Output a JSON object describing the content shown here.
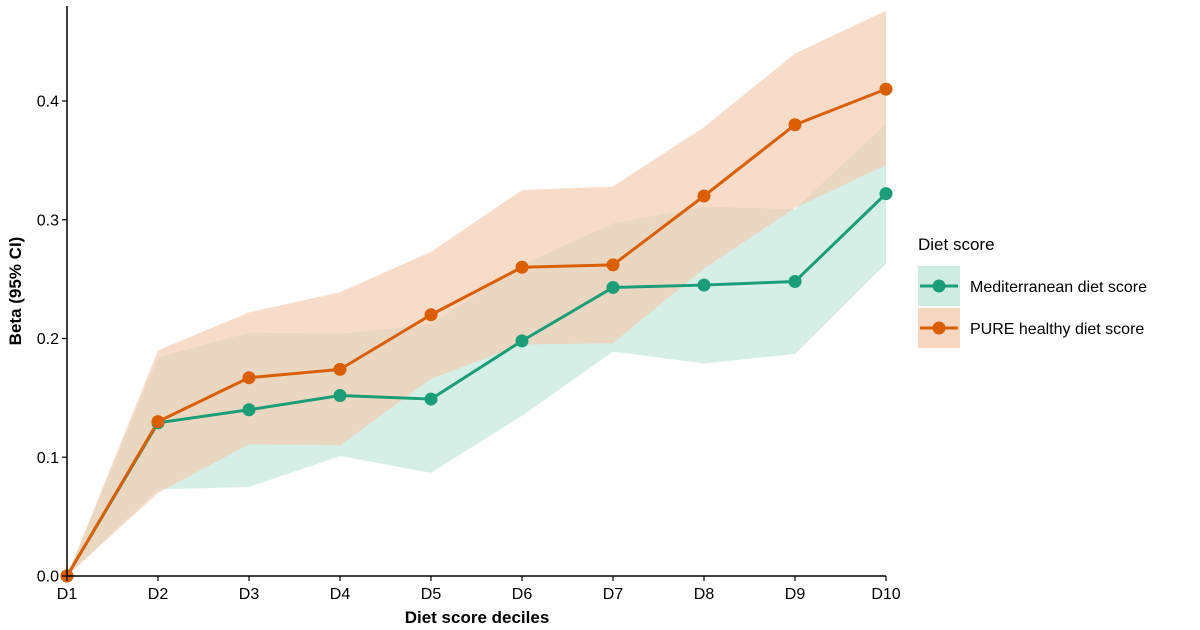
{
  "chart_data": {
    "type": "line",
    "xlabel": "Diet score deciles",
    "ylabel": "Beta (95% CI)",
    "categories": [
      "D1",
      "D2",
      "D3",
      "D4",
      "D5",
      "D6",
      "D7",
      "D8",
      "D9",
      "D10"
    ],
    "ylim": [
      0,
      0.48
    ],
    "yticks": [
      0.0,
      0.1,
      0.2,
      0.3,
      0.4
    ],
    "ytick_labels": [
      "0.0",
      "0.1",
      "0.2",
      "0.3",
      "0.4"
    ],
    "grid": false,
    "legend": {
      "title": "Diet score",
      "placement": "right"
    },
    "series": [
      {
        "name": "Mediterranean diet score",
        "color": "#1b9e77",
        "band_color": "#bfe6da",
        "values": [
          0.0,
          0.129,
          0.14,
          0.152,
          0.149,
          0.198,
          0.243,
          0.245,
          0.248,
          0.322
        ],
        "lower": [
          0.0,
          0.073,
          0.075,
          0.101,
          0.087,
          0.135,
          0.189,
          0.179,
          0.187,
          0.263
        ],
        "upper": [
          0.0,
          0.184,
          0.205,
          0.204,
          0.212,
          0.262,
          0.297,
          0.311,
          0.309,
          0.381
        ]
      },
      {
        "name": "PURE healthy diet score",
        "color": "#d95f02",
        "band_color": "#f4c9ad",
        "values": [
          0.0,
          0.13,
          0.167,
          0.174,
          0.22,
          0.26,
          0.262,
          0.32,
          0.38,
          0.41
        ],
        "lower": [
          0.0,
          0.07,
          0.111,
          0.11,
          0.166,
          0.195,
          0.196,
          0.259,
          0.31,
          0.346
        ],
        "upper": [
          0.0,
          0.19,
          0.222,
          0.239,
          0.273,
          0.325,
          0.328,
          0.378,
          0.44,
          0.476
        ]
      }
    ]
  }
}
